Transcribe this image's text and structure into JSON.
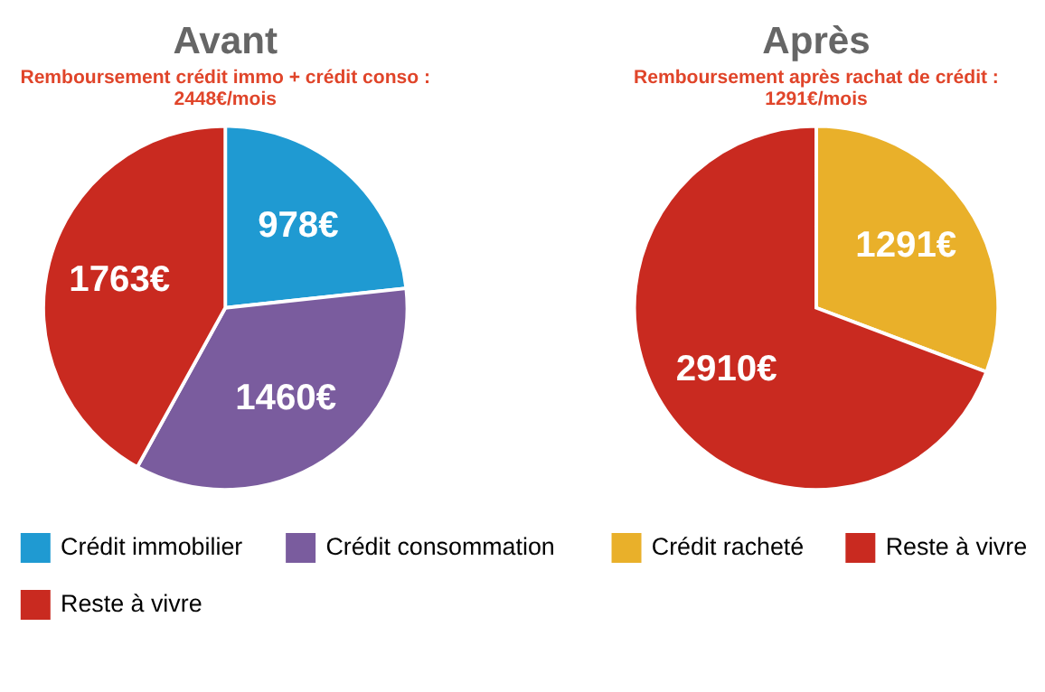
{
  "chart_data": [
    {
      "type": "pie",
      "title": "Avant",
      "subtitle": "Remboursement crédit immo + crédit conso :\n2448€/mois",
      "categories": [
        "Crédit immobilier",
        "Crédit consommation",
        "Reste à vivre"
      ],
      "values": [
        978,
        1460,
        1763
      ],
      "value_labels": [
        "978€",
        "1460€",
        "1763€"
      ],
      "colors": [
        "#1f9ad2",
        "#7a5c9e",
        "#c92a20"
      ],
      "legend": "bottom"
    },
    {
      "type": "pie",
      "title": "Après",
      "subtitle": "Remboursement après rachat de crédit :\n1291€/mois",
      "categories": [
        "Crédit racheté",
        "Reste à vivre"
      ],
      "values": [
        1291,
        2910
      ],
      "value_labels": [
        "1291€",
        "2910€"
      ],
      "colors": [
        "#e9b02a",
        "#c92a20"
      ],
      "legend": "bottom"
    }
  ]
}
